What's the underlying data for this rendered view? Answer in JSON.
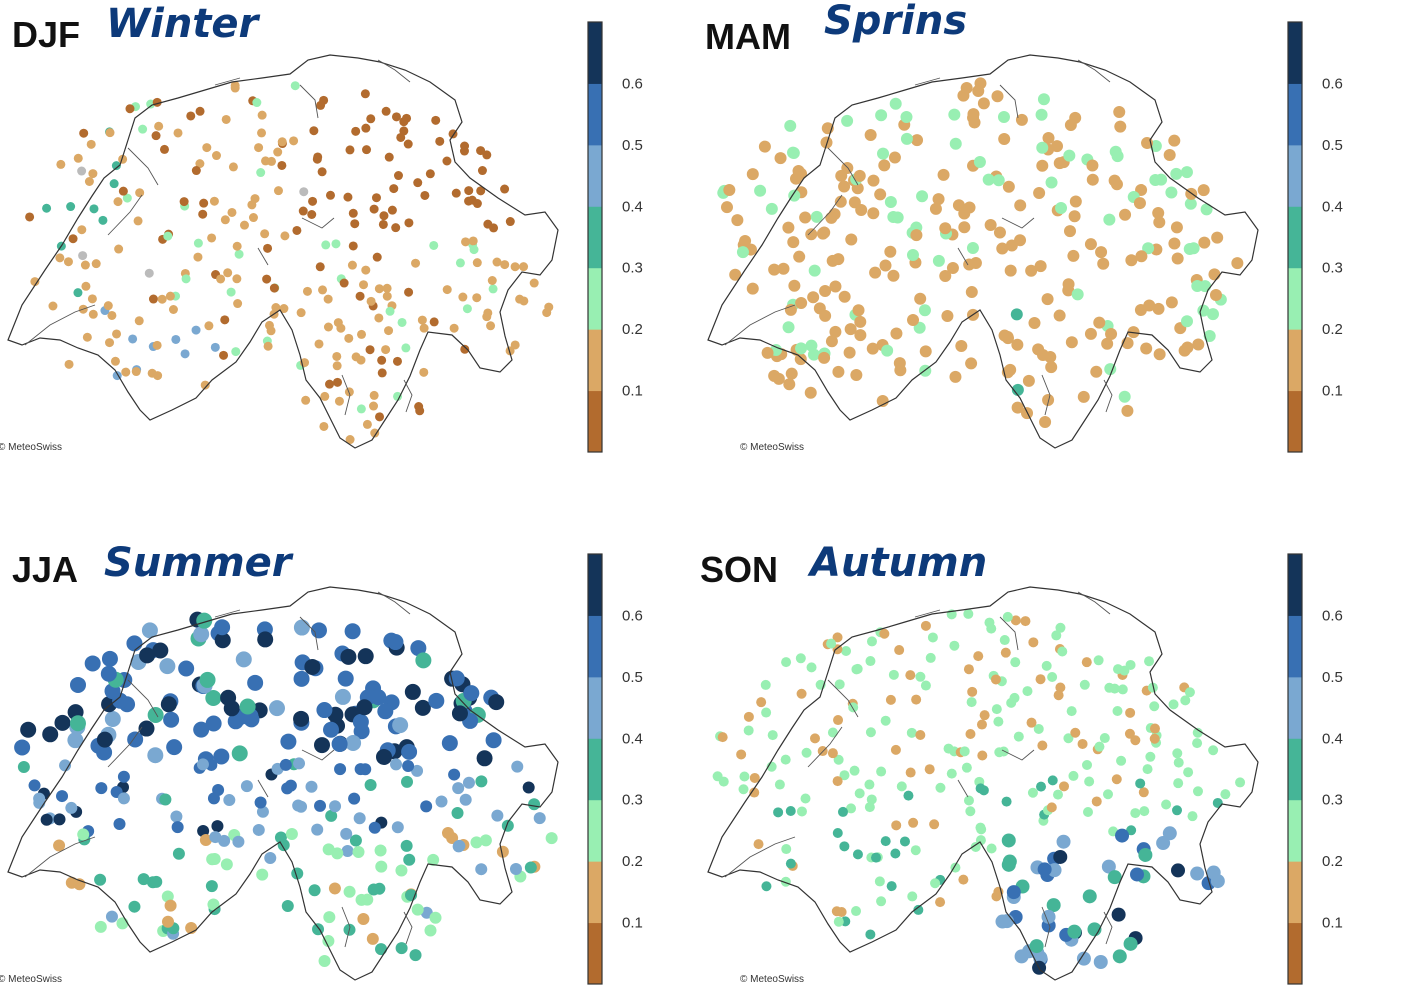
{
  "colorbar": {
    "ticks": [
      "0.1",
      "0.2",
      "0.3",
      "0.4",
      "0.5",
      "0.6"
    ],
    "colors": [
      "#b26b2e",
      "#dba865",
      "#98efb2",
      "#45b597",
      "#7aa8d1",
      "#3870b3",
      "#143459"
    ]
  },
  "credit": "© MeteoSwiss",
  "panels": [
    {
      "code": "DJF",
      "season": "Winter"
    },
    {
      "code": "MAM",
      "season": "Sprins"
    },
    {
      "code": "JJA",
      "season": "Summer"
    },
    {
      "code": "SON",
      "season": "Autumn"
    }
  ]
}
